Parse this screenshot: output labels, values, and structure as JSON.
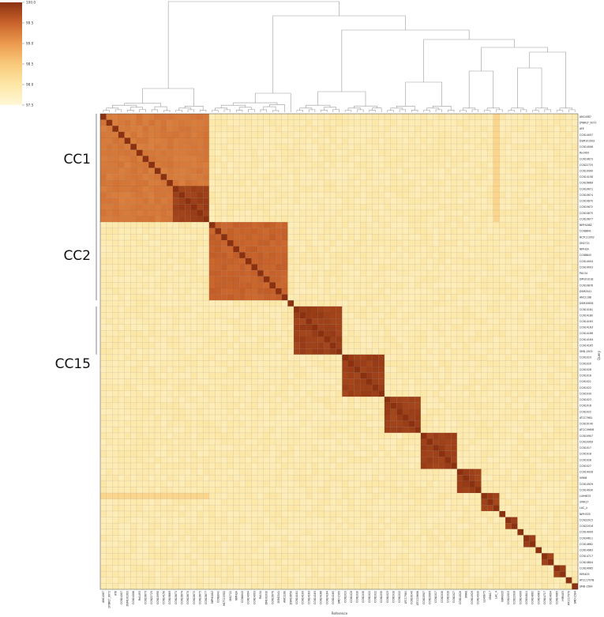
{
  "chart_data": {
    "type": "heatmap",
    "title": "",
    "xlabel": "Reference",
    "ylabel": "Query",
    "colorbar": {
      "ticks": [
        "100.0",
        "99.5",
        "99.0",
        "98.5",
        "98.0",
        "97.5"
      ],
      "min": 97.5,
      "max": 100.0,
      "colors": [
        "#fff7d6",
        "#fde7a6",
        "#f9c97a",
        "#eb9a4e",
        "#c9632b",
        "#8b3110"
      ]
    },
    "row_labels": [
      "ANC4087",
      "DYBKLT_0072",
      "AYE",
      "CCN14007",
      "DSM101992",
      "CCN14006",
      "Ra1493",
      "CCN10673",
      "CCN22725",
      "CCN10990",
      "CCN14158",
      "CCN19669",
      "CCN10671",
      "CCN10674",
      "CCN10670",
      "CCN10672",
      "CCN10675",
      "CCN10677",
      "NIPH1882",
      "CCN8841",
      "NCTC13302",
      "SM2721",
      "NIPH2A",
      "CCN8843",
      "CCN14004",
      "CCN14003",
      "PA134",
      "DM101018",
      "CCN10878",
      "DSM2541",
      "ANC1188",
      "DSM10658",
      "CCN14181",
      "CCN14180",
      "CCN14163",
      "CCN14163",
      "CCN14166",
      "CCN14164",
      "CCN14165",
      "SMD-1505",
      "CCN1023",
      "CCN1020",
      "CCN1028",
      "CCN1018",
      "CCN1021",
      "CCN1022",
      "CCN1030",
      "CCN1023",
      "CCN1018",
      "CCN1022",
      "ATCC7981",
      "CCN19140",
      "ATCC19606",
      "CCN10907",
      "CCN10909",
      "CCN1017",
      "CCN1018",
      "CCN1028",
      "CCN1027",
      "CCN14028",
      "UMA8",
      "CCN14929",
      "CCN14930",
      "LUH9875",
      "UMA17",
      "LAC_4",
      "NIPH335",
      "CCN22015",
      "CCN22016",
      "CCN14009",
      "CCN34611",
      "CCN14662",
      "CCN14963",
      "CCN14717",
      "CCN14804",
      "CCN14065",
      "HIRI403",
      "ATCC17978",
      "SMD-1584"
    ],
    "col_labels": [
      "ANC4087",
      "DYBKLT_0072",
      "AYE",
      "CCN14007",
      "DSM101992",
      "CCN14006",
      "Ra1493",
      "CCN10673",
      "CCN22725",
      "CCN10990",
      "CCN14158",
      "CCN19669",
      "CCN10671",
      "CCN10674",
      "CCN10670",
      "CCN10672",
      "CCN10675",
      "CCN10677",
      "NIPH1882",
      "CCN8841",
      "NCTC13302",
      "SM2721",
      "NIPH2A",
      "CCN8843",
      "CCN14004",
      "CCN14003",
      "PA134",
      "DM101018",
      "CCN10878",
      "DSM2541",
      "ANC1188",
      "DSM10658",
      "CCN14181",
      "CCN14180",
      "CCN14163",
      "CCN14163",
      "CCN14166",
      "CCN14164",
      "CCN14165",
      "SMD-1505",
      "CCN1023",
      "CCN1020",
      "CCN1028",
      "CCN1018",
      "CCN1021",
      "CCN1022",
      "CCN1030",
      "CCN1023",
      "CCN1018",
      "CCN1022",
      "ATCC7981",
      "CCN19140",
      "ATCC19606",
      "CCN10907",
      "CCN10909",
      "CCN1017",
      "CCN1018",
      "CCN1028",
      "CCN1027",
      "CCN14028",
      "UMA8",
      "CCN14929",
      "CCN14930",
      "LUH9875",
      "UMA17",
      "LAC_4",
      "NIPH335",
      "CCN22015",
      "CCN22016",
      "CCN14009",
      "CCN34611",
      "CCN14662",
      "CCN14963",
      "CCN14717",
      "CCN14804",
      "CCN14065",
      "HIRI403",
      "ATCC17978",
      "SMD-1584"
    ],
    "groups": [
      {
        "start": 0,
        "end": 17,
        "value": 99.3,
        "label": "CC1"
      },
      {
        "start": 12,
        "end": 17,
        "value": 99.85
      },
      {
        "start": 18,
        "end": 30,
        "value": 99.5,
        "label": "CC2"
      },
      {
        "start": 32,
        "end": 39,
        "value": 99.85,
        "label": "CC15"
      },
      {
        "start": 40,
        "end": 46,
        "value": 99.85
      },
      {
        "start": 47,
        "end": 52,
        "value": 99.85
      },
      {
        "start": 53,
        "end": 58,
        "value": 99.85
      },
      {
        "start": 59,
        "end": 62,
        "value": 99.85
      },
      {
        "start": 63,
        "end": 65,
        "value": 99.85
      },
      {
        "start": 67,
        "end": 68,
        "value": 99.85
      },
      {
        "start": 70,
        "end": 71,
        "value": 99.85
      },
      {
        "start": 73,
        "end": 74,
        "value": 99.85
      },
      {
        "start": 75,
        "end": 76,
        "value": 99.85
      }
    ],
    "background_value": 97.9,
    "diagonal_value": 100.0,
    "accent_columns": [
      {
        "col": 65,
        "rows": [
          0,
          17
        ],
        "value": 98.3
      }
    ],
    "accent_rows": [
      {
        "row": 63,
        "cols": [
          0,
          17
        ],
        "value": 98.3
      }
    ],
    "cc_labels": [
      {
        "text": "CC1",
        "row": 7
      },
      {
        "text": "CC2",
        "row": 23
      },
      {
        "text": "CC15",
        "row": 41
      }
    ]
  }
}
